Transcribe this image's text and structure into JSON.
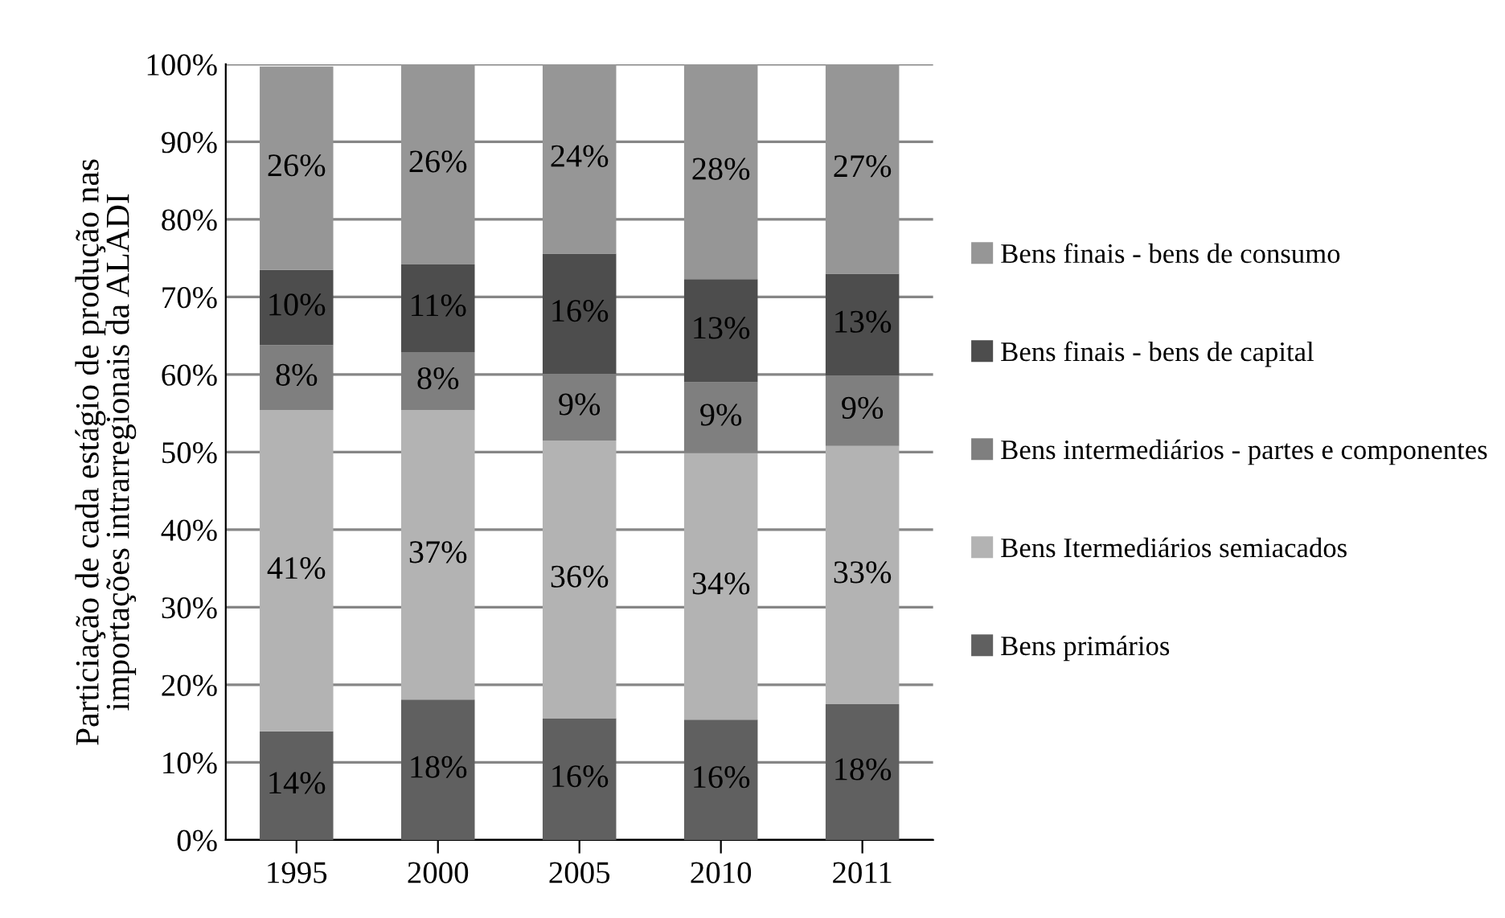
{
  "chart_data": {
    "type": "bar",
    "stacked": true,
    "ylabel": "Particiação de cada estágio de produção nas\nimportações intrarregionais da ALADI",
    "categories": [
      "1995",
      "2000",
      "2005",
      "2010",
      "2011"
    ],
    "series": [
      {
        "name": "Bens primários",
        "color": "#606060",
        "values": [
          14.0,
          18.1,
          15.7,
          15.5,
          17.5
        ],
        "value_labels": [
          "14%",
          "18%",
          "16%",
          "16%",
          "18%"
        ]
      },
      {
        "name": "Bens Itermediários semiacados",
        "color": "#b3b3b3",
        "values": [
          41.4,
          37.3,
          35.8,
          34.4,
          33.3
        ],
        "value_labels": [
          "41%",
          "37%",
          "36%",
          "34%",
          "33%"
        ]
      },
      {
        "name": "Bens intermediários - partes e componentes",
        "color": "#7f7f7f",
        "values": [
          8.4,
          7.5,
          8.6,
          9.1,
          9.1
        ],
        "value_labels": [
          "8%",
          "8%",
          "9%",
          "9%",
          "9%"
        ]
      },
      {
        "name": "Bens finais - bens de capital",
        "color": "#4d4d4d",
        "values": [
          9.7,
          11.3,
          15.5,
          13.3,
          13.1
        ],
        "value_labels": [
          "10%",
          "11%",
          "16%",
          "13%",
          "13%"
        ]
      },
      {
        "name": "Bens finais - bens de consumo",
        "color": "#969696",
        "values": [
          26.2,
          25.8,
          24.4,
          27.7,
          27.0
        ],
        "value_labels": [
          "26%",
          "26%",
          "24%",
          "28%",
          "27%"
        ]
      }
    ],
    "ylim": [
      0,
      100
    ],
    "yticks": [
      {
        "value": 0,
        "label": "0%"
      },
      {
        "value": 10,
        "label": "10%"
      },
      {
        "value": 20,
        "label": "20%"
      },
      {
        "value": 30,
        "label": "30%"
      },
      {
        "value": 40,
        "label": "40%"
      },
      {
        "value": 50,
        "label": "50%"
      },
      {
        "value": 60,
        "label": "60%"
      },
      {
        "value": 70,
        "label": "70%"
      },
      {
        "value": 80,
        "label": "80%"
      },
      {
        "value": 90,
        "label": "90%"
      },
      {
        "value": 100,
        "label": "100%"
      }
    ],
    "grid": "y",
    "legend": "right"
  }
}
